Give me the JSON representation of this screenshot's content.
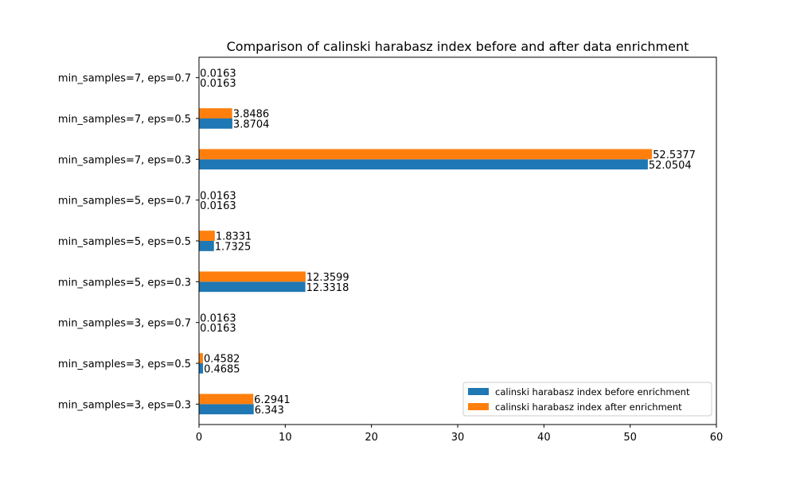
{
  "chart_data": {
    "type": "bar",
    "orientation": "horizontal",
    "title": "Comparison of calinski harabasz index before and after data enrichment",
    "xlabel": "",
    "ylabel": "",
    "xlim": [
      0,
      60
    ],
    "xticks": [
      0,
      10,
      20,
      30,
      40,
      50,
      60
    ],
    "grid": false,
    "legend_position": "lower-right",
    "categories": [
      "min_samples=3, eps=0.3",
      "min_samples=3, eps=0.5",
      "min_samples=3, eps=0.7",
      "min_samples=5, eps=0.3",
      "min_samples=5, eps=0.5",
      "min_samples=5, eps=0.7",
      "min_samples=7, eps=0.3",
      "min_samples=7, eps=0.5",
      "min_samples=7, eps=0.7"
    ],
    "series": [
      {
        "name": "calinski harabasz index before enrichment",
        "color": "#1f77b4",
        "values": [
          6.343,
          0.4685,
          0.0163,
          12.3318,
          1.7325,
          0.0163,
          52.0504,
          3.8704,
          0.0163
        ],
        "labels": [
          "6.343",
          "0.4685",
          "0.0163",
          "12.3318",
          "1.7325",
          "0.0163",
          "52.0504",
          "3.8704",
          "0.0163"
        ]
      },
      {
        "name": "calinski harabasz index after enrichment",
        "color": "#ff7f0e",
        "values": [
          6.2941,
          0.4582,
          0.0163,
          12.3599,
          1.8331,
          0.0163,
          52.5377,
          3.8486,
          0.0163
        ],
        "labels": [
          "6.2941",
          "0.4582",
          "0.0163",
          "12.3599",
          "1.8331",
          "0.0163",
          "52.5377",
          "3.8486",
          "0.0163"
        ]
      }
    ]
  }
}
